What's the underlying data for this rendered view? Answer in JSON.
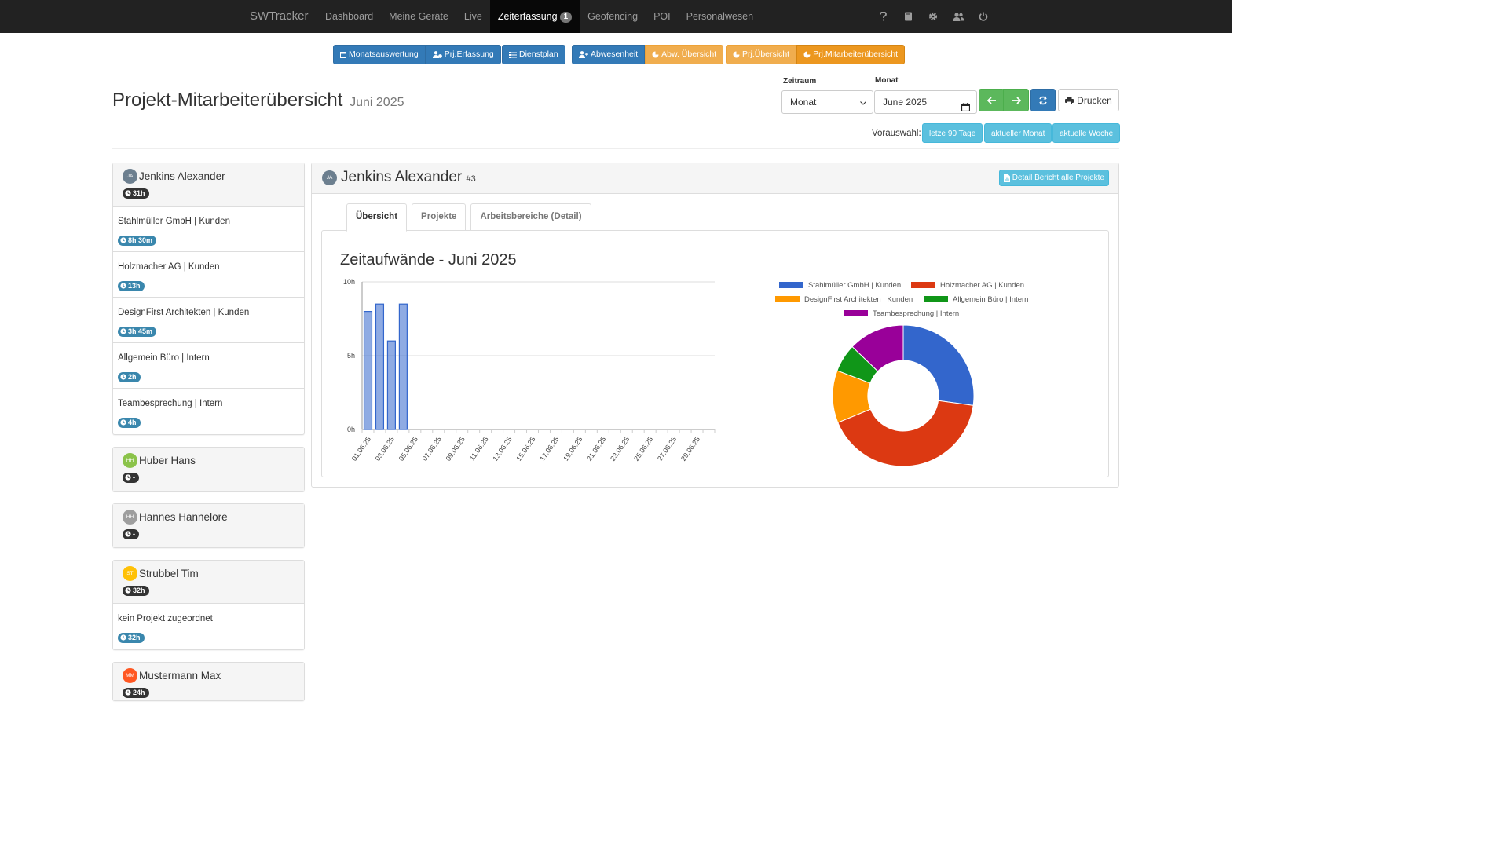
{
  "nav": {
    "brand": "SWTracker",
    "items": [
      {
        "label": "Dashboard"
      },
      {
        "label": "Meine Geräte"
      },
      {
        "label": "Live"
      },
      {
        "label": "Zeiterfassung",
        "badge": "1",
        "active": true
      },
      {
        "label": "Geofencing"
      },
      {
        "label": "POI"
      },
      {
        "label": "Personalwesen"
      }
    ],
    "right_icons": [
      "question-icon",
      "book-icon",
      "gear-icon",
      "users-icon",
      "power-icon"
    ]
  },
  "toolbar": {
    "monatsauswertung": "Monatsauswertung",
    "prj_erfassung": "Prj.Erfassung",
    "dienstplan": "Dienstplan",
    "abwesenheit": "Abwesenheit",
    "abw_uebersicht": "Abw. Übersicht",
    "prj_uebersicht": "Prj.Übersicht",
    "prj_mitarbeiteruebersicht": "Prj.Mitarbeiterübersicht"
  },
  "page": {
    "title": "Projekt-Mitarbeiterübersicht",
    "subtitle": "Juni 2025"
  },
  "filters": {
    "zeitraum_label": "Zeitraum",
    "zeitraum_value": "Monat",
    "monat_label": "Monat",
    "monat_value": "June 2025",
    "print_label": "Drucken",
    "vorauswahl_label": "Vorauswahl:",
    "presets": [
      "letze 90 Tage",
      "aktueller Monat",
      "aktuelle Woche"
    ]
  },
  "colors": {
    "primary": "#337ab7",
    "warning": "#f0ad4e",
    "success": "#5cb85c",
    "info": "#5bc0de"
  },
  "employees": [
    {
      "initials": "JA",
      "name": "Jenkins Alexander",
      "total": "31h",
      "avatar_color": "#6c7f8f",
      "projects": [
        {
          "name": "Stahlmüller GmbH | Kunden",
          "time": "8h 30m"
        },
        {
          "name": "Holzmacher AG | Kunden",
          "time": "13h"
        },
        {
          "name": "DesignFirst Architekten | Kunden",
          "time": "3h 45m"
        },
        {
          "name": "Allgemein Büro | Intern",
          "time": "2h"
        },
        {
          "name": "Teambesprechung | Intern",
          "time": "4h"
        }
      ]
    },
    {
      "initials": "HH",
      "name": "Huber Hans",
      "total": "-",
      "avatar_color": "#8bc34a",
      "projects": []
    },
    {
      "initials": "HH",
      "name": "Hannes Hannelore",
      "total": "-",
      "avatar_color": "#9e9e9e",
      "projects": []
    },
    {
      "initials": "ST",
      "name": "Strubbel Tim",
      "total": "32h",
      "avatar_color": "#ffc107",
      "projects": [
        {
          "name": "kein Projekt zugeordnet",
          "time": "32h"
        }
      ]
    },
    {
      "initials": "MM",
      "name": "Mustermann Max",
      "total": "24h",
      "avatar_color": "#ff5722",
      "projects": []
    }
  ],
  "detail": {
    "initials": "JA",
    "name": "Jenkins Alexander",
    "id": "#3",
    "report_button": "Detail Bericht alle Projekte",
    "tabs": [
      "Übersicht",
      "Projekte",
      "Arbeitsbereiche (Detail)"
    ],
    "active_tab": 0
  },
  "chart_data": [
    {
      "type": "bar",
      "title": "Zeitaufwände - Juni 2025",
      "x_tick_labels": [
        "01.06.25",
        "03.06.25",
        "05.06.25",
        "07.06.25",
        "09.06.25",
        "11.06.25",
        "13.06.25",
        "15.06.25",
        "17.06.25",
        "19.06.25",
        "21.06.25",
        "23.06.25",
        "25.06.25",
        "27.06.25",
        "29.06.25"
      ],
      "y_tick_labels": [
        "0h",
        "5h",
        "10h"
      ],
      "ylim": [
        0,
        10
      ],
      "categories": [
        "01.06.25",
        "02.06.25",
        "03.06.25",
        "04.06.25",
        "05.06.25",
        "06.06.25",
        "07.06.25",
        "08.06.25",
        "09.06.25",
        "10.06.25",
        "11.06.25",
        "12.06.25",
        "13.06.25",
        "14.06.25",
        "15.06.25",
        "16.06.25",
        "17.06.25",
        "18.06.25",
        "19.06.25",
        "20.06.25",
        "21.06.25",
        "22.06.25",
        "23.06.25",
        "24.06.25",
        "25.06.25",
        "26.06.25",
        "27.06.25",
        "28.06.25",
        "29.06.25",
        "30.06.25"
      ],
      "values": [
        8,
        8.5,
        6,
        8.5,
        0,
        0,
        0,
        0,
        0,
        0,
        0,
        0,
        0,
        0,
        0,
        0,
        0,
        0,
        0,
        0,
        0,
        0,
        0,
        0,
        0,
        0,
        0,
        0,
        0,
        0
      ],
      "bar_color": "#3366cc",
      "grid": true
    },
    {
      "type": "pie",
      "labels": [
        "Stahlmüller GmbH | Kunden",
        "Holzmacher AG | Kunden",
        "DesignFirst Architekten | Kunden",
        "Allgemein Büro | Intern",
        "Teambesprechung | Intern"
      ],
      "values": [
        8.5,
        13,
        3.75,
        2,
        4
      ],
      "colors": [
        "#3366cc",
        "#dc3912",
        "#ff9900",
        "#109618",
        "#990099"
      ],
      "legend": "top",
      "donut": true
    }
  ]
}
